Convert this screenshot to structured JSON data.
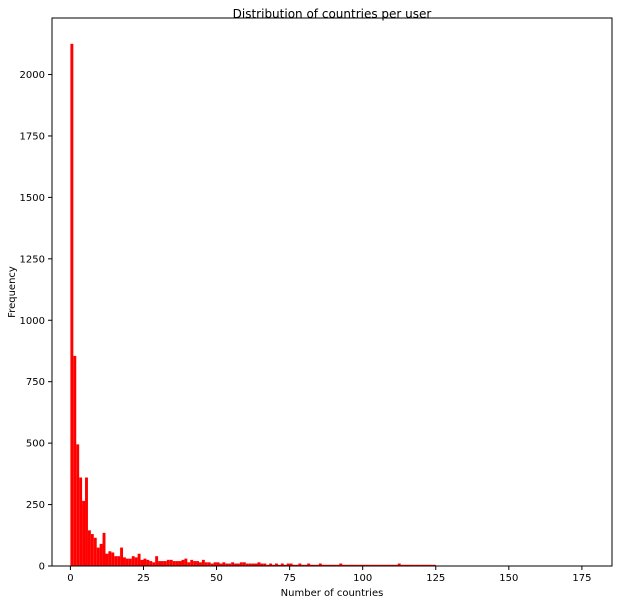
{
  "chart_data": {
    "type": "bar",
    "title": "Distribution of countries per user",
    "xlabel": "Number of countries",
    "ylabel": "Frequency",
    "xlim": [
      -6.3,
      185.3
    ],
    "ylim": [
      0,
      2230
    ],
    "grid": false,
    "x_ticks": [
      0,
      25,
      50,
      75,
      100,
      125,
      150,
      175
    ],
    "y_ticks": [
      0,
      250,
      500,
      750,
      1000,
      1250,
      1500,
      1750,
      2000
    ],
    "bin_width": 1,
    "x": [
      0,
      1,
      2,
      3,
      4,
      5,
      6,
      7,
      8,
      9,
      10,
      11,
      12,
      13,
      14,
      15,
      16,
      17,
      18,
      19,
      20,
      21,
      22,
      23,
      24,
      25,
      26,
      27,
      28,
      29,
      30,
      31,
      32,
      33,
      34,
      35,
      36,
      37,
      38,
      39,
      40,
      41,
      42,
      43,
      44,
      45,
      46,
      47,
      48,
      49,
      50,
      51,
      52,
      53,
      54,
      55,
      56,
      57,
      58,
      59,
      60,
      61,
      62,
      63,
      64,
      65,
      66,
      67,
      68,
      69,
      70,
      71,
      72,
      73,
      74,
      75,
      76,
      77,
      78,
      79,
      80,
      81,
      82,
      83,
      84,
      85,
      86,
      87,
      88,
      89,
      90,
      91,
      92,
      93,
      94,
      95,
      96,
      97,
      98,
      99,
      100,
      101,
      102,
      103,
      104,
      105,
      106,
      107,
      108,
      109,
      110,
      111,
      112,
      113,
      114,
      115,
      116,
      117,
      118,
      119,
      120,
      121,
      122,
      123,
      124,
      125,
      126,
      127,
      128,
      129,
      130,
      131,
      132,
      133,
      134,
      135,
      136,
      137,
      138,
      139,
      140,
      141,
      142,
      143,
      144,
      145,
      146,
      147,
      148,
      149,
      150,
      151,
      152,
      153,
      154,
      155,
      156,
      157,
      158,
      159,
      160,
      161,
      162,
      163,
      164,
      165,
      166,
      167,
      168,
      169,
      170,
      171,
      172,
      173,
      174,
      175,
      176,
      177,
      178
    ],
    "series": [
      {
        "color": "#ff0000",
        "values": [
          2125,
          855,
          495,
          360,
          265,
          360,
          145,
          130,
          115,
          75,
          90,
          135,
          50,
          60,
          55,
          40,
          40,
          75,
          35,
          30,
          30,
          40,
          35,
          50,
          25,
          30,
          25,
          20,
          15,
          40,
          20,
          20,
          20,
          25,
          25,
          20,
          20,
          20,
          25,
          30,
          15,
          25,
          20,
          20,
          15,
          25,
          15,
          15,
          10,
          15,
          15,
          10,
          15,
          10,
          10,
          15,
          10,
          10,
          15,
          15,
          10,
          10,
          10,
          10,
          15,
          10,
          10,
          5,
          10,
          5,
          10,
          5,
          10,
          5,
          10,
          10,
          5,
          5,
          10,
          5,
          5,
          10,
          5,
          5,
          5,
          10,
          5,
          5,
          5,
          5,
          5,
          5,
          10,
          5,
          5,
          5,
          5,
          5,
          5,
          5,
          5,
          5,
          5,
          5,
          5,
          5,
          5,
          5,
          5,
          5,
          5,
          5,
          10,
          5,
          5,
          5,
          5,
          5,
          5,
          5,
          5,
          5,
          5,
          5,
          5,
          0,
          0,
          0,
          0,
          0,
          0,
          0,
          0,
          0,
          0,
          0,
          0,
          0,
          0,
          0,
          0,
          0,
          0,
          0,
          0,
          0,
          0,
          0,
          0,
          0,
          0,
          0,
          0,
          0,
          0,
          0,
          0,
          0,
          0,
          0,
          0,
          0,
          0,
          0,
          0,
          0,
          0,
          0,
          0,
          0,
          0,
          0,
          0,
          0,
          0,
          0,
          0,
          0,
          0
        ]
      }
    ]
  }
}
